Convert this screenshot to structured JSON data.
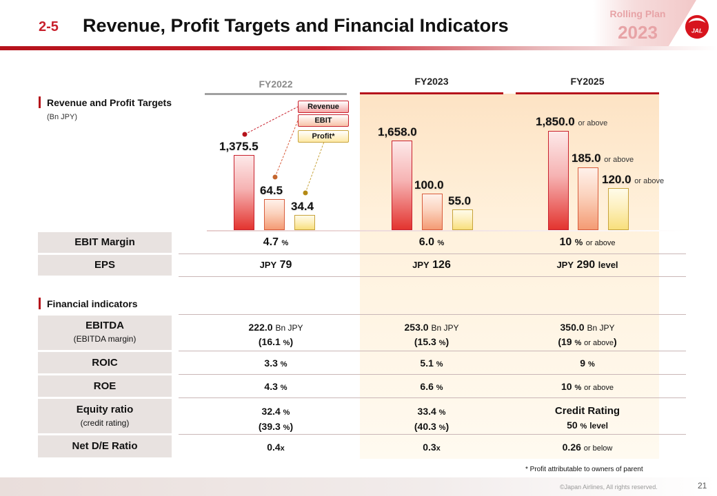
{
  "header": {
    "section_number": "2-5",
    "title": "Revenue, Profit Targets and Financial Indicators",
    "badge_label": "Rolling Plan",
    "badge_year": "2023",
    "logo_text": "JAL"
  },
  "columns": {
    "fy2022": "FY2022",
    "fy2023": "FY2023",
    "fy2025": "FY2025"
  },
  "section1": {
    "title": "Revenue and Profit Targets",
    "unit": "(Bn JPY)"
  },
  "legend": {
    "revenue": "Revenue",
    "ebit": "EBIT",
    "profit": "Profit*"
  },
  "bars": {
    "fy2022": {
      "revenue": "1,375.5",
      "ebit": "64.5",
      "profit": "34.4"
    },
    "fy2023": {
      "revenue": "1,658.0",
      "ebit": "100.0",
      "profit": "55.0"
    },
    "fy2025": {
      "revenue": "1,850.0",
      "ebit": "185.0",
      "profit": "120.0",
      "qualifier": "or above"
    }
  },
  "rows": {
    "ebit_margin": {
      "label": "EBIT Margin",
      "fy2022": "4.7",
      "fy2023": "6.0",
      "fy2025": "10",
      "unit": "%",
      "fy2025_note": "or above"
    },
    "eps": {
      "label": "EPS",
      "prefix": "JPY",
      "fy2022": "79",
      "fy2023": "126",
      "fy2025": "290",
      "fy2025_suffix": "level"
    }
  },
  "section2": {
    "title": "Financial indicators"
  },
  "indicators": {
    "ebitda": {
      "label": "EBITDA",
      "sublabel": "(EBITDA  margin)",
      "unit": "Bn JPY",
      "pct": "%",
      "note": "or above",
      "fy2022": "222.0",
      "fy2022_margin": "16.1",
      "fy2023": "253.0",
      "fy2023_margin": "15.3",
      "fy2025": "350.0",
      "fy2025_margin": "19"
    },
    "roic": {
      "label": "ROIC",
      "unit": "%",
      "fy2022": "3.3",
      "fy2023": "5.1",
      "fy2025": "9"
    },
    "roe": {
      "label": "ROE",
      "unit": "%",
      "fy2022": "4.3",
      "fy2023": "6.6",
      "fy2025": "10",
      "note": "or above"
    },
    "equity": {
      "label": "Equity ratio",
      "sublabel": "(credit rating)",
      "unit": "%",
      "fy2022": "32.4",
      "fy2022_sub": "39.3",
      "fy2023": "33.4",
      "fy2023_sub": "40.3",
      "fy2025": "Credit Rating",
      "fy2025_sub": "50",
      "fy2025_sub_suffix": "level"
    },
    "net_de": {
      "label": "Net D/E Ratio",
      "unit": "x",
      "fy2022": "0.4",
      "fy2023": "0.3",
      "fy2025": "0.26",
      "note": "or below"
    }
  },
  "footnote": "* Profit attributable to owners of parent",
  "copyright": "©Japan Airlines, All rights reserved.",
  "page_number": "21",
  "colors": {
    "brand_red": "#c8202c",
    "highlight": "#fde3c4"
  }
}
